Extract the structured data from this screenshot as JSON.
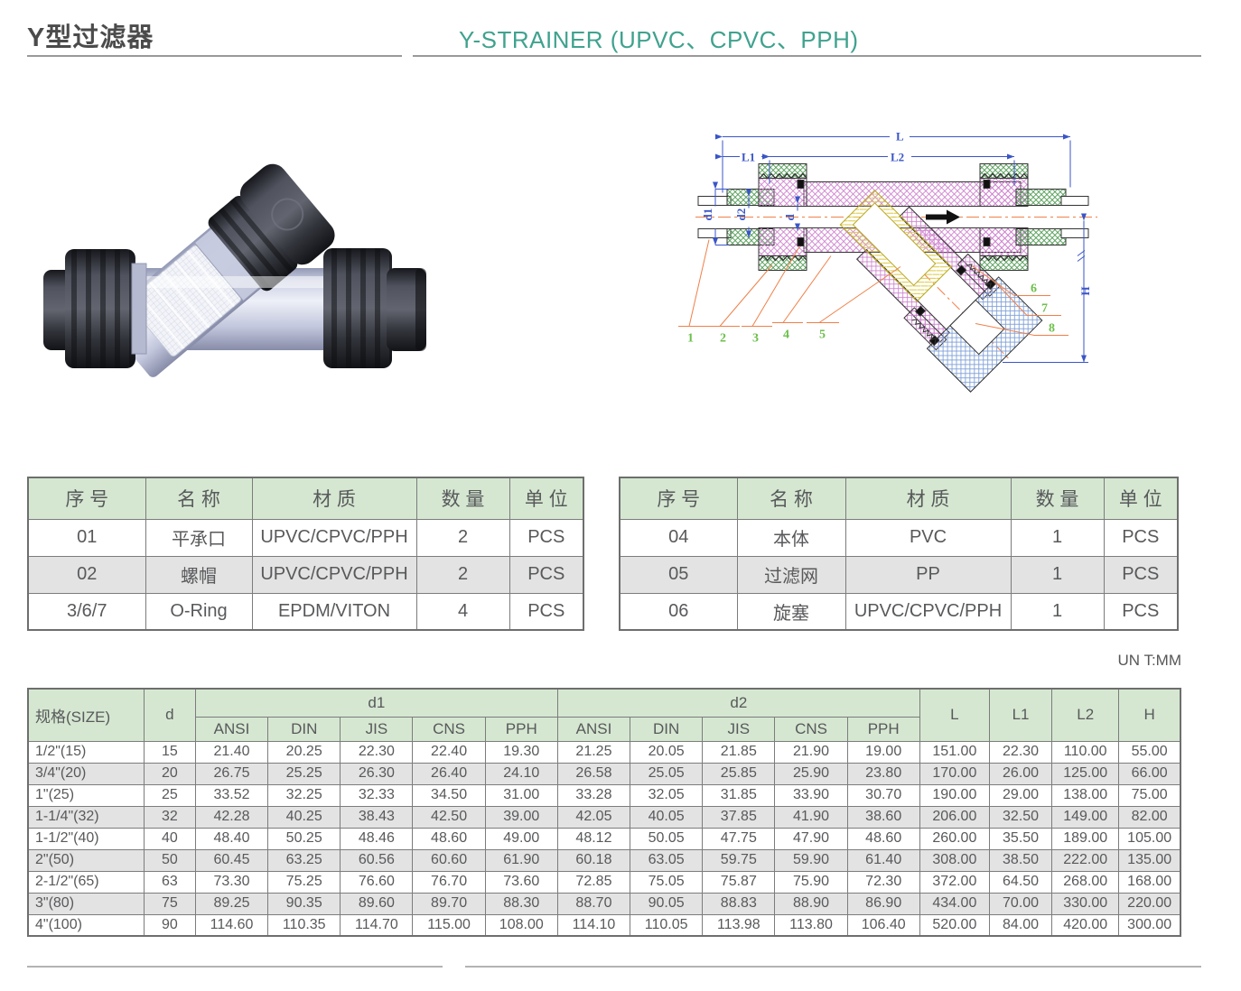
{
  "header": {
    "title_cn": "Y型过滤器",
    "title_en": "Y-STRAINER (UPVC、CPVC、PPH)"
  },
  "diagram": {
    "labels": {
      "L": "L",
      "L1": "L1",
      "L2": "L2",
      "d1": "d1",
      "d2": "d2",
      "d": "d",
      "H": "H"
    },
    "callouts": [
      "1",
      "2",
      "3",
      "4",
      "5",
      "6",
      "7",
      "8"
    ]
  },
  "parts_table_left": {
    "headers": [
      "序 号",
      "名 称",
      "材 质",
      "数 量",
      "单 位"
    ],
    "rows": [
      [
        "01",
        "平承口",
        "UPVC/CPVC/PPH",
        "2",
        "PCS"
      ],
      [
        "02",
        "螺帽",
        "UPVC/CPVC/PPH",
        "2",
        "PCS"
      ],
      [
        "3/6/7",
        "O-Ring",
        "EPDM/VITON",
        "4",
        "PCS"
      ]
    ]
  },
  "parts_table_right": {
    "headers": [
      "序 号",
      "名 称",
      "材 质",
      "数 量",
      "单 位"
    ],
    "rows": [
      [
        "04",
        "本体",
        "PVC",
        "1",
        "PCS"
      ],
      [
        "05",
        "过滤网",
        "PP",
        "1",
        "PCS"
      ],
      [
        "06",
        "旋塞",
        "UPVC/CPVC/PPH",
        "1",
        "PCS"
      ]
    ]
  },
  "dimension_table": {
    "unit_note": "UN T:MM",
    "columns": {
      "size": "规格(SIZE)",
      "d": "d",
      "d1": "d1",
      "d2": "d2",
      "L": "L",
      "L1": "L1",
      "L2": "L2",
      "H": "H"
    },
    "sub_headers": [
      "ANSI",
      "DIN",
      "JIS",
      "CNS",
      "PPH",
      "ANSI",
      "DIN",
      "JIS",
      "CNS",
      "PPH"
    ],
    "rows": [
      [
        "1/2\"(15)",
        "15",
        "21.40",
        "20.25",
        "22.30",
        "22.40",
        "19.30",
        "21.25",
        "20.05",
        "21.85",
        "21.90",
        "19.00",
        "151.00",
        "22.30",
        "110.00",
        "55.00"
      ],
      [
        "3/4\"(20)",
        "20",
        "26.75",
        "25.25",
        "26.30",
        "26.40",
        "24.10",
        "26.58",
        "25.05",
        "25.85",
        "25.90",
        "23.80",
        "170.00",
        "26.00",
        "125.00",
        "66.00"
      ],
      [
        "1\"(25)",
        "25",
        "33.52",
        "32.25",
        "32.33",
        "34.50",
        "31.00",
        "33.28",
        "32.05",
        "31.85",
        "33.90",
        "30.70",
        "190.00",
        "29.00",
        "138.00",
        "75.00"
      ],
      [
        "1-1/4\"(32)",
        "32",
        "42.28",
        "40.25",
        "38.43",
        "42.50",
        "39.00",
        "42.05",
        "40.05",
        "37.85",
        "41.90",
        "38.60",
        "206.00",
        "32.50",
        "149.00",
        "82.00"
      ],
      [
        "1-1/2\"(40)",
        "40",
        "48.40",
        "50.25",
        "48.46",
        "48.60",
        "49.00",
        "48.12",
        "50.05",
        "47.75",
        "47.90",
        "48.60",
        "260.00",
        "35.50",
        "189.00",
        "105.00"
      ],
      [
        "2\"(50)",
        "50",
        "60.45",
        "63.25",
        "60.56",
        "60.60",
        "61.90",
        "60.18",
        "63.05",
        "59.75",
        "59.90",
        "61.40",
        "308.00",
        "38.50",
        "222.00",
        "135.00"
      ],
      [
        "2-1/2\"(65)",
        "63",
        "73.30",
        "75.25",
        "76.60",
        "76.70",
        "73.60",
        "72.85",
        "75.05",
        "75.87",
        "75.90",
        "72.30",
        "372.00",
        "64.50",
        "268.00",
        "168.00"
      ],
      [
        "3\"(80)",
        "75",
        "89.25",
        "90.35",
        "89.60",
        "89.70",
        "88.30",
        "88.70",
        "90.05",
        "88.83",
        "88.90",
        "86.90",
        "434.00",
        "70.00",
        "330.00",
        "220.00"
      ],
      [
        "4\"(100)",
        "90",
        "114.60",
        "110.35",
        "114.70",
        "115.00",
        "108.00",
        "114.10",
        "110.05",
        "113.98",
        "113.80",
        "106.40",
        "520.00",
        "84.00",
        "420.00",
        "300.00"
      ]
    ]
  },
  "colors": {
    "accent_teal": "#3fa28e",
    "table_header_green": "#d5e7d1",
    "row_alt_gray": "#e3e3e3",
    "dim_line_blue": "#3a55c8",
    "leader_orange": "#f08048",
    "callout_green": "#6cbf4a",
    "hatch_magenta": "#cf84cf",
    "hatch_green": "#4f9b52",
    "hatch_blue": "#7fa0d8",
    "strainer_yellow": "#dcc93e"
  }
}
